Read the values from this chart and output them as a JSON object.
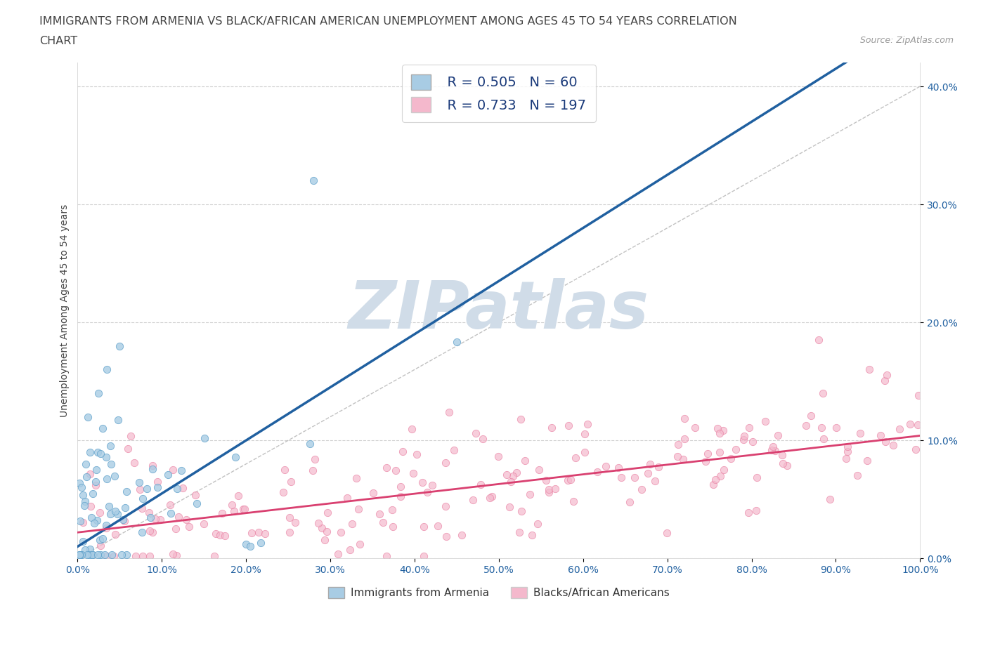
{
  "title_line1": "IMMIGRANTS FROM ARMENIA VS BLACK/AFRICAN AMERICAN UNEMPLOYMENT AMONG AGES 45 TO 54 YEARS CORRELATION",
  "title_line2": "CHART",
  "source": "Source: ZipAtlas.com",
  "ylabel": "Unemployment Among Ages 45 to 54 years",
  "xlim": [
    0,
    100
  ],
  "ylim": [
    0,
    42
  ],
  "xtick_values": [
    0,
    10,
    20,
    30,
    40,
    50,
    60,
    70,
    80,
    90,
    100
  ],
  "ytick_values": [
    0,
    10,
    20,
    30,
    40
  ],
  "blue_color": "#a8cce4",
  "blue_edge": "#5a9ec9",
  "pink_color": "#f4b8cc",
  "pink_edge": "#e87da0",
  "blue_line_color": "#2060a0",
  "pink_line_color": "#d94070",
  "ref_line_color": "#bbbbbb",
  "R_blue": 0.505,
  "N_blue": 60,
  "R_pink": 0.733,
  "N_pink": 197,
  "legend_label_blue": "Immigrants from Armenia",
  "legend_label_pink": "Blacks/African Americans",
  "watermark": "ZIPatlas",
  "background_color": "#ffffff",
  "title_color": "#444444",
  "axis_label_color": "#444444",
  "ytick_color": "#2060a0",
  "xtick_color": "#2060a0",
  "legend_text_color": "#1a3a7a",
  "watermark_color": "#d0dce8",
  "ref_line_slope": 0.4,
  "blue_slope": 0.45,
  "blue_intercept": 1.0,
  "pink_slope": 0.082,
  "pink_intercept": 2.2
}
